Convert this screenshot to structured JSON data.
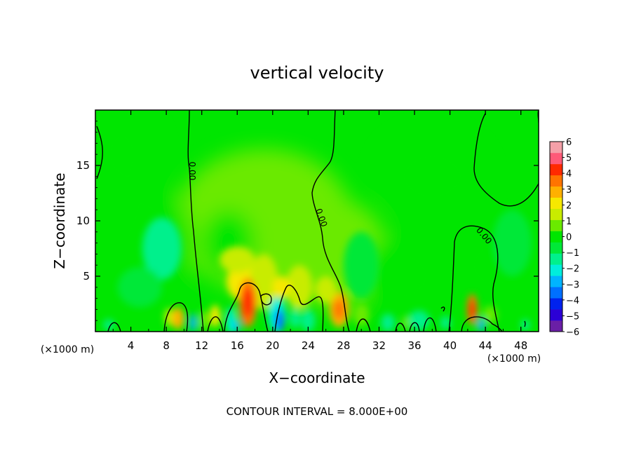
{
  "chart_data": {
    "type": "heatmap",
    "title": "vertical velocity",
    "xlabel": "X−coordinate",
    "ylabel": "Z−coordinate",
    "x_unit_left": "(×1000 m)",
    "x_unit_right": "(×1000 m)",
    "footer": "CONTOUR INTERVAL = 8.000E+00",
    "xlim": [
      0,
      50
    ],
    "ylim": [
      0,
      20
    ],
    "x_ticks": [
      4,
      8,
      12,
      16,
      20,
      24,
      28,
      32,
      36,
      40,
      44,
      48
    ],
    "x_tick_labels": [
      "4",
      "8",
      "12",
      "16",
      "20",
      "24",
      "28",
      "32",
      "36",
      "40",
      "44",
      "48"
    ],
    "y_ticks": [
      5,
      10,
      15
    ],
    "y_tick_labels": [
      "5",
      "10",
      "15"
    ],
    "contour_labels": [
      {
        "text": "0.00",
        "x": 10.6,
        "z": 14.5,
        "angle": 90
      },
      {
        "text": "0.00",
        "x": 25.2,
        "z": 10.2,
        "angle": 70
      },
      {
        "text": "0.00",
        "x": 43.6,
        "z": 8.5,
        "angle": 50
      }
    ],
    "colorbar": {
      "min": -6,
      "max": 6,
      "tick_values": [
        6,
        5,
        4,
        3,
        2,
        1,
        0,
        -1,
        -2,
        -3,
        -4,
        -5,
        -6
      ],
      "tick_labels": [
        "6",
        "5",
        "4",
        "3",
        "2",
        "1",
        "0",
        "−1",
        "−2",
        "−3",
        "−4",
        "−5",
        "−6"
      ],
      "colors": [
        "#6a1fa6",
        "#2b00d6",
        "#0022ee",
        "#0070ff",
        "#00b4ff",
        "#00eedc",
        "#00f08c",
        "#00e838",
        "#00e600",
        "#6aea00",
        "#c8ec00",
        "#f6e800",
        "#ffb000",
        "#ff7400",
        "#ff2a00",
        "#ff5a78",
        "#f4a0a8"
      ]
    }
  }
}
